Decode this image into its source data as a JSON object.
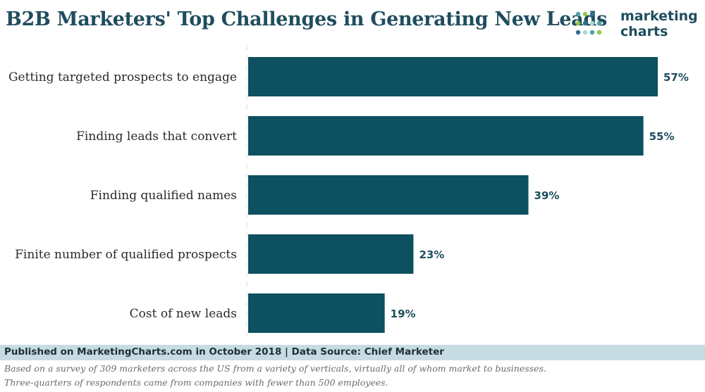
{
  "brand": {
    "line1": "marketing",
    "line2": "charts",
    "dot_colors": [
      "#4aa3a3",
      "#8fc94a",
      "#2f6f8f",
      "#a9d7d7"
    ]
  },
  "footer": {
    "published": "Published on MarketingCharts.com in October 2018 | Data Source: Chief Marketer",
    "note_line1": "Based on a survey of 309 marketers across the US from a variety of verticals, virtually all of whom market to businesses.",
    "note_line2": "Three-quarters of respondents came from companies with fewer than 500 employees."
  },
  "colors": {
    "bar": "#0d5060",
    "label": "#2a2a2a",
    "value": "#1f4d5e",
    "footer_bg": "#c7dbe3"
  },
  "chart_data": {
    "type": "bar",
    "orientation": "horizontal",
    "title": "B2B Marketers' Top Challenges in Generating New Leads",
    "categories": [
      "Getting targeted prospects to engage",
      "Finding leads that convert",
      "Finding qualified names",
      "Finite number of qualified prospects",
      "Cost of new leads"
    ],
    "values": [
      57,
      55,
      39,
      23,
      19
    ],
    "value_labels": [
      "57%",
      "55%",
      "39%",
      "23%",
      "19%"
    ],
    "xlabel": "",
    "ylabel": "",
    "xlim": [
      0,
      57
    ],
    "unit": "%",
    "grid": false,
    "legend": "none"
  }
}
